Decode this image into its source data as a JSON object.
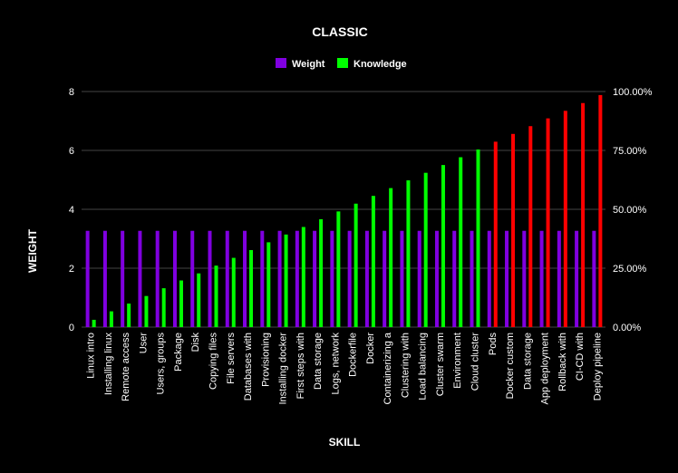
{
  "chart_data": {
    "type": "bar",
    "title": "CLASSIC",
    "xlabel": "SKILL",
    "ylabel": "WEIGHT",
    "ylim": [
      0,
      8
    ],
    "y2lim": [
      0,
      1
    ],
    "yticks": [
      "0",
      "2",
      "4",
      "6",
      "8"
    ],
    "y2ticks": [
      "0.00%",
      "25.00%",
      "50.00%",
      "75.00%",
      "100.00%"
    ],
    "grid": true,
    "legend_position": "top-center",
    "colors": {
      "weight": "#8000e0",
      "knowledge": "#00ff00",
      "knowledge_highlight": "#ff0000",
      "grid": "#444444"
    },
    "categories": [
      "Linux intro",
      "Installing linux",
      "Remote access",
      "User",
      "Users, groups",
      "Package",
      "Disk",
      "Copying files",
      "File servers",
      "Databases with",
      "Provisioning",
      "Installing docker",
      "First steps with",
      "Data storage",
      "Logs, network",
      "Dockerfile",
      "Docker",
      "Containerizing a",
      "Clustering with",
      "Load balancing",
      "Cluster swarm",
      "Environment",
      "Cloud cluster",
      "Pods",
      "Docker custom",
      "Data storage",
      "App deployment",
      "Rollback with",
      "CI-CD with",
      "Deploy pipeline"
    ],
    "series": [
      {
        "name": "Weight",
        "axis": "left",
        "values": [
          3.27,
          3.27,
          3.27,
          3.27,
          3.27,
          3.27,
          3.27,
          3.27,
          3.27,
          3.27,
          3.27,
          3.27,
          3.27,
          3.27,
          3.27,
          3.27,
          3.27,
          3.27,
          3.27,
          3.27,
          3.27,
          3.27,
          3.27,
          3.27,
          3.27,
          3.27,
          3.27,
          3.27,
          3.27,
          3.27
        ]
      },
      {
        "name": "Knowledge",
        "axis": "right",
        "values": [
          0.031,
          0.067,
          0.1,
          0.132,
          0.165,
          0.198,
          0.228,
          0.261,
          0.294,
          0.327,
          0.36,
          0.393,
          0.425,
          0.458,
          0.491,
          0.524,
          0.557,
          0.59,
          0.623,
          0.655,
          0.688,
          0.721,
          0.754,
          0.787,
          0.82,
          0.853,
          0.886,
          0.918,
          0.951,
          0.985
        ],
        "highlight_from_index": 23
      }
    ]
  }
}
